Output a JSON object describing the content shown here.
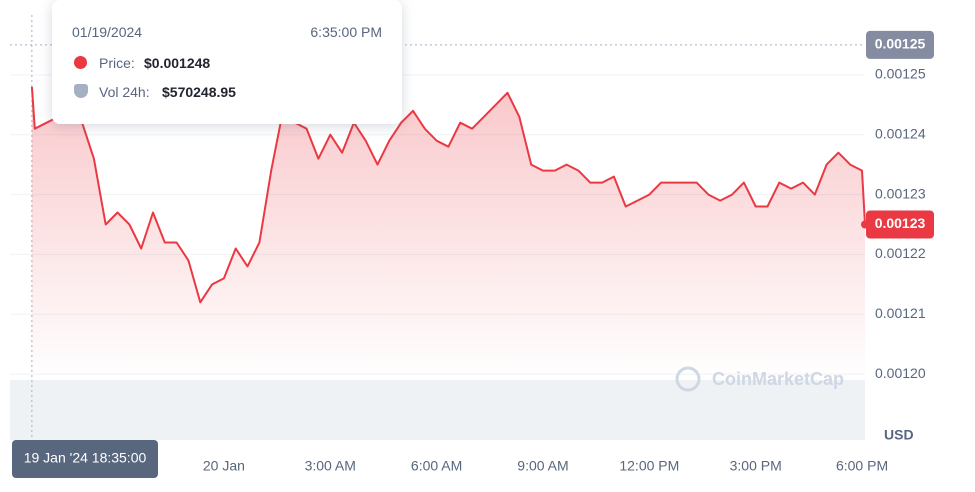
{
  "chart_data": {
    "type": "line",
    "x": [
      "2024-01-19 18:35",
      "2024-01-19 18:40",
      "2024-01-19 19:00",
      "2024-01-19 19:20",
      "2024-01-19 19:40",
      "2024-01-19 20:00",
      "2024-01-19 20:20",
      "2024-01-19 20:40",
      "2024-01-19 21:00",
      "2024-01-19 21:20",
      "2024-01-19 21:40",
      "2024-01-19 22:00",
      "2024-01-19 22:20",
      "2024-01-19 22:40",
      "2024-01-19 23:00",
      "2024-01-19 23:20",
      "2024-01-19 23:40",
      "2024-01-20 00:00",
      "2024-01-20 00:20",
      "2024-01-20 00:40",
      "2024-01-20 01:00",
      "2024-01-20 01:20",
      "2024-01-20 01:40",
      "2024-01-20 02:00",
      "2024-01-20 02:20",
      "2024-01-20 02:40",
      "2024-01-20 03:00",
      "2024-01-20 03:20",
      "2024-01-20 03:40",
      "2024-01-20 04:00",
      "2024-01-20 04:20",
      "2024-01-20 04:40",
      "2024-01-20 05:00",
      "2024-01-20 05:20",
      "2024-01-20 05:40",
      "2024-01-20 06:00",
      "2024-01-20 06:20",
      "2024-01-20 06:40",
      "2024-01-20 07:00",
      "2024-01-20 07:20",
      "2024-01-20 07:40",
      "2024-01-20 08:00",
      "2024-01-20 08:20",
      "2024-01-20 08:40",
      "2024-01-20 09:00",
      "2024-01-20 09:20",
      "2024-01-20 09:40",
      "2024-01-20 10:00",
      "2024-01-20 10:20",
      "2024-01-20 10:40",
      "2024-01-20 11:00",
      "2024-01-20 11:20",
      "2024-01-20 11:40",
      "2024-01-20 12:00",
      "2024-01-20 12:20",
      "2024-01-20 12:40",
      "2024-01-20 13:00",
      "2024-01-20 13:20",
      "2024-01-20 13:40",
      "2024-01-20 14:00",
      "2024-01-20 14:20",
      "2024-01-20 14:40",
      "2024-01-20 15:00",
      "2024-01-20 15:20",
      "2024-01-20 15:40",
      "2024-01-20 16:00",
      "2024-01-20 16:20",
      "2024-01-20 16:40",
      "2024-01-20 17:00",
      "2024-01-20 17:20",
      "2024-01-20 17:40",
      "2024-01-20 18:00",
      "2024-01-20 18:05"
    ],
    "series": [
      {
        "color": "#ea3943",
        "values": [
          0.001248,
          0.001241,
          0.001242,
          0.001243,
          0.001243,
          0.001242,
          0.001236,
          0.001225,
          0.001227,
          0.001225,
          0.001221,
          0.001227,
          0.001222,
          0.001222,
          0.001219,
          0.001212,
          0.001215,
          0.001216,
          0.001221,
          0.001218,
          0.001222,
          0.001234,
          0.001244,
          0.001242,
          0.001241,
          0.001236,
          0.00124,
          0.001237,
          0.001242,
          0.001239,
          0.001235,
          0.001239,
          0.001242,
          0.001244,
          0.001241,
          0.001239,
          0.001238,
          0.001242,
          0.001241,
          0.001243,
          0.001245,
          0.001247,
          0.001243,
          0.001235,
          0.001234,
          0.001234,
          0.001235,
          0.001234,
          0.001232,
          0.001232,
          0.001233,
          0.001228,
          0.001229,
          0.00123,
          0.001232,
          0.001232,
          0.001232,
          0.001232,
          0.00123,
          0.001229,
          0.00123,
          0.001232,
          0.001228,
          0.001228,
          0.001232,
          0.001231,
          0.001232,
          0.00123,
          0.001235,
          0.001237,
          0.001235,
          0.001234,
          0.001225
        ],
        "value_labels": [
          null,
          null,
          null,
          null,
          null,
          null,
          null,
          null,
          null,
          null,
          null,
          null,
          null,
          null,
          null,
          null,
          null,
          null,
          null,
          null,
          null,
          null,
          null,
          null,
          null,
          null,
          null,
          null,
          null,
          null,
          null,
          null,
          null,
          null,
          null,
          null,
          null,
          null,
          null,
          null,
          null,
          null,
          null,
          null,
          null,
          null,
          null,
          null,
          null,
          null,
          null,
          null,
          null,
          null,
          null,
          null,
          null,
          null,
          null,
          null,
          null,
          null,
          null,
          null,
          null,
          null,
          null,
          null,
          null,
          null,
          null,
          null,
          "0.00123"
        ]
      }
    ],
    "xlim": [
      "2024-01-19 17:58",
      "2024-01-20 18:05"
    ],
    "xticks": [
      {
        "value": "2024-01-20 00:00",
        "label": "20 Jan"
      },
      {
        "value": "2024-01-20 03:00",
        "label": "3:00 AM"
      },
      {
        "value": "2024-01-20 06:00",
        "label": "6:00 AM"
      },
      {
        "value": "2024-01-20 09:00",
        "label": "9:00 AM"
      },
      {
        "value": "2024-01-20 12:00",
        "label": "12:00 PM"
      },
      {
        "value": "2024-01-20 15:00",
        "label": "3:00 PM"
      },
      {
        "value": "2024-01-20 18:00",
        "label": "6:00 PM"
      }
    ],
    "ylim": [
      0.001189,
      0.00126
    ],
    "yticks": [
      {
        "value": 0.0012,
        "label": "0.00120"
      },
      0.00121,
      0.00122,
      0.00123,
      0.00124,
      0.00125
    ],
    "y_label": "USD",
    "grid": true,
    "reference_line": {
      "value": 0.001255,
      "label": "0.00125"
    },
    "watermark": "CoinMarketCap",
    "tooltip": {
      "date": "01/19/2024",
      "time": "6:35:00 PM",
      "price_label": "Price:",
      "price": "$0.001248",
      "volume_label": "Vol 24h:",
      "volume": "$570248.95",
      "crosshair_label": "19 Jan '24 18:35:00"
    }
  }
}
